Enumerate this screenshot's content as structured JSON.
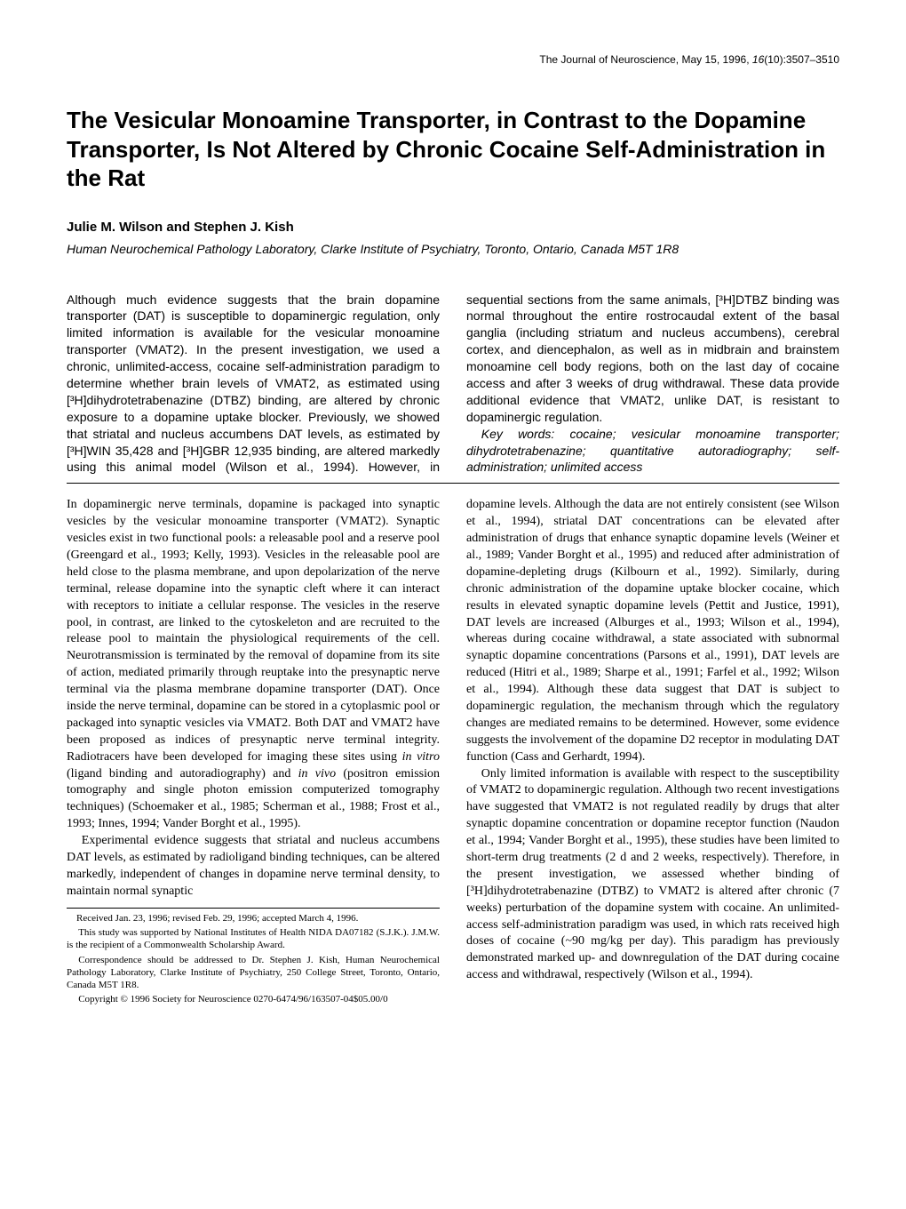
{
  "journal": {
    "name": "The Journal of Neuroscience,",
    "date": "May 15, 1996,",
    "volume": "16",
    "issue": "(10):3507–3510"
  },
  "title": "The Vesicular Monoamine Transporter, in Contrast to the Dopamine Transporter, Is Not Altered by Chronic Cocaine Self-Administration in the Rat",
  "authors": "Julie M. Wilson and Stephen J. Kish",
  "affiliation": "Human Neurochemical Pathology Laboratory, Clarke Institute of Psychiatry, Toronto, Ontario, Canada M5T 1R8",
  "abstract": {
    "p1": "Although much evidence suggests that the brain dopamine transporter (DAT) is susceptible to dopaminergic regulation, only limited information is available for the vesicular monoamine transporter (VMAT2). In the present investigation, we used a chronic, unlimited-access, cocaine self-administration paradigm to determine whether brain levels of VMAT2, as estimated using [³H]dihydrotetrabenazine (DTBZ) binding, are altered by chronic exposure to a dopamine uptake blocker. Previously, we showed that striatal and nucleus accumbens DAT levels, as estimated by [³H]WIN 35,428 and [³H]GBR 12,935 binding, are altered markedly using this animal model (Wilson et al., 1994). However, in sequential sections from the same animals, [³H]DTBZ binding was normal throughout the entire rostrocaudal extent of the basal ganglia (including striatum and nucleus accumbens), cerebral cortex, and diencephalon, as well as in midbrain and brainstem monoamine cell body regions, both on the last day of cocaine access and after 3 weeks of drug withdrawal. These data provide additional evidence that VMAT2, unlike DAT, is resistant to dopaminergic regulation.",
    "keywords_label": "Key words:",
    "keywords": " cocaine; vesicular monoamine transporter; dihydrotetrabenazine; quantitative autoradiography; self-administration; unlimited access"
  },
  "body": {
    "p1": "In dopaminergic nerve terminals, dopamine is packaged into synaptic vesicles by the vesicular monoamine transporter (VMAT2). Synaptic vesicles exist in two functional pools: a releasable pool and a reserve pool (Greengard et al., 1993; Kelly, 1993). Vesicles in the releasable pool are held close to the plasma membrane, and upon depolarization of the nerve terminal, release dopamine into the synaptic cleft where it can interact with receptors to initiate a cellular response. The vesicles in the reserve pool, in contrast, are linked to the cytoskeleton and are recruited to the release pool to maintain the physiological requirements of the cell. Neurotransmission is terminated by the removal of dopamine from its site of action, mediated primarily through reuptake into the presynaptic nerve terminal via the plasma membrane dopamine transporter (DAT). Once inside the nerve terminal, dopamine can be stored in a cytoplasmic pool or packaged into synaptic vesicles via VMAT2. Both DAT and VMAT2 have been proposed as indices of presynaptic nerve terminal integrity. Radiotracers have been developed for imaging these sites using ",
    "p1_italic1": "in vitro",
    "p1_mid": " (ligand binding and autoradiography) and ",
    "p1_italic2": "in vivo",
    "p1_end": " (positron emission tomography and single photon emission computerized tomography techniques) (Schoemaker et al., 1985; Scherman et al., 1988; Frost et al., 1993; Innes, 1994; Vander Borght et al., 1995).",
    "p2": "Experimental evidence suggests that striatal and nucleus accumbens DAT levels, as estimated by radioligand binding techniques, can be altered markedly, independent of changes in dopamine nerve terminal density, to maintain normal synaptic",
    "p3": "dopamine levels. Although the data are not entirely consistent (see Wilson et al., 1994), striatal DAT concentrations can be elevated after administration of drugs that enhance synaptic dopamine levels (Weiner et al., 1989; Vander Borght et al., 1995) and reduced after administration of dopamine-depleting drugs (Kilbourn et al., 1992). Similarly, during chronic administration of the dopamine uptake blocker cocaine, which results in elevated synaptic dopamine levels (Pettit and Justice, 1991), DAT levels are increased (Alburges et al., 1993; Wilson et al., 1994), whereas during cocaine withdrawal, a state associated with subnormal synaptic dopamine concentrations (Parsons et al., 1991), DAT levels are reduced (Hitri et al., 1989; Sharpe et al., 1991; Farfel et al., 1992; Wilson et al., 1994). Although these data suggest that DAT is subject to dopaminergic regulation, the mechanism through which the regulatory changes are mediated remains to be determined. However, some evidence suggests the involvement of the dopamine D2 receptor in modulating DAT function (Cass and Gerhardt, 1994).",
    "p4": "Only limited information is available with respect to the susceptibility of VMAT2 to dopaminergic regulation. Although two recent investigations have suggested that VMAT2 is not regulated readily by drugs that alter synaptic dopamine concentration or dopamine receptor function (Naudon et al., 1994; Vander Borght et al., 1995), these studies have been limited to short-term drug treatments (2 d and 2 weeks, respectively). Therefore, in the present investigation, we assessed whether binding of [³H]dihydrotetrabenazine (DTBZ) to VMAT2 is altered after chronic (7 weeks) perturbation of the dopamine system with cocaine. An unlimited-access self-administration paradigm was used, in which rats received high doses of cocaine (~90 mg/kg per day). This paradigm has previously demonstrated marked up- and downregulation of the DAT during cocaine access and withdrawal, respectively (Wilson et al., 1994)."
  },
  "footnotes": {
    "received": "Received Jan. 23, 1996; revised Feb. 29, 1996; accepted March 4, 1996.",
    "support": "This study was supported by National Institutes of Health NIDA DA07182 (S.J.K.). J.M.W. is the recipient of a Commonwealth Scholarship Award.",
    "correspondence": "Correspondence should be addressed to Dr. Stephen J. Kish, Human Neurochemical Pathology Laboratory, Clarke Institute of Psychiatry, 250 College Street, Toronto, Ontario, Canada M5T 1R8.",
    "copyright": "Copyright © 1996 Society for Neuroscience   0270-6474/96/163507-04$05.00/0"
  }
}
